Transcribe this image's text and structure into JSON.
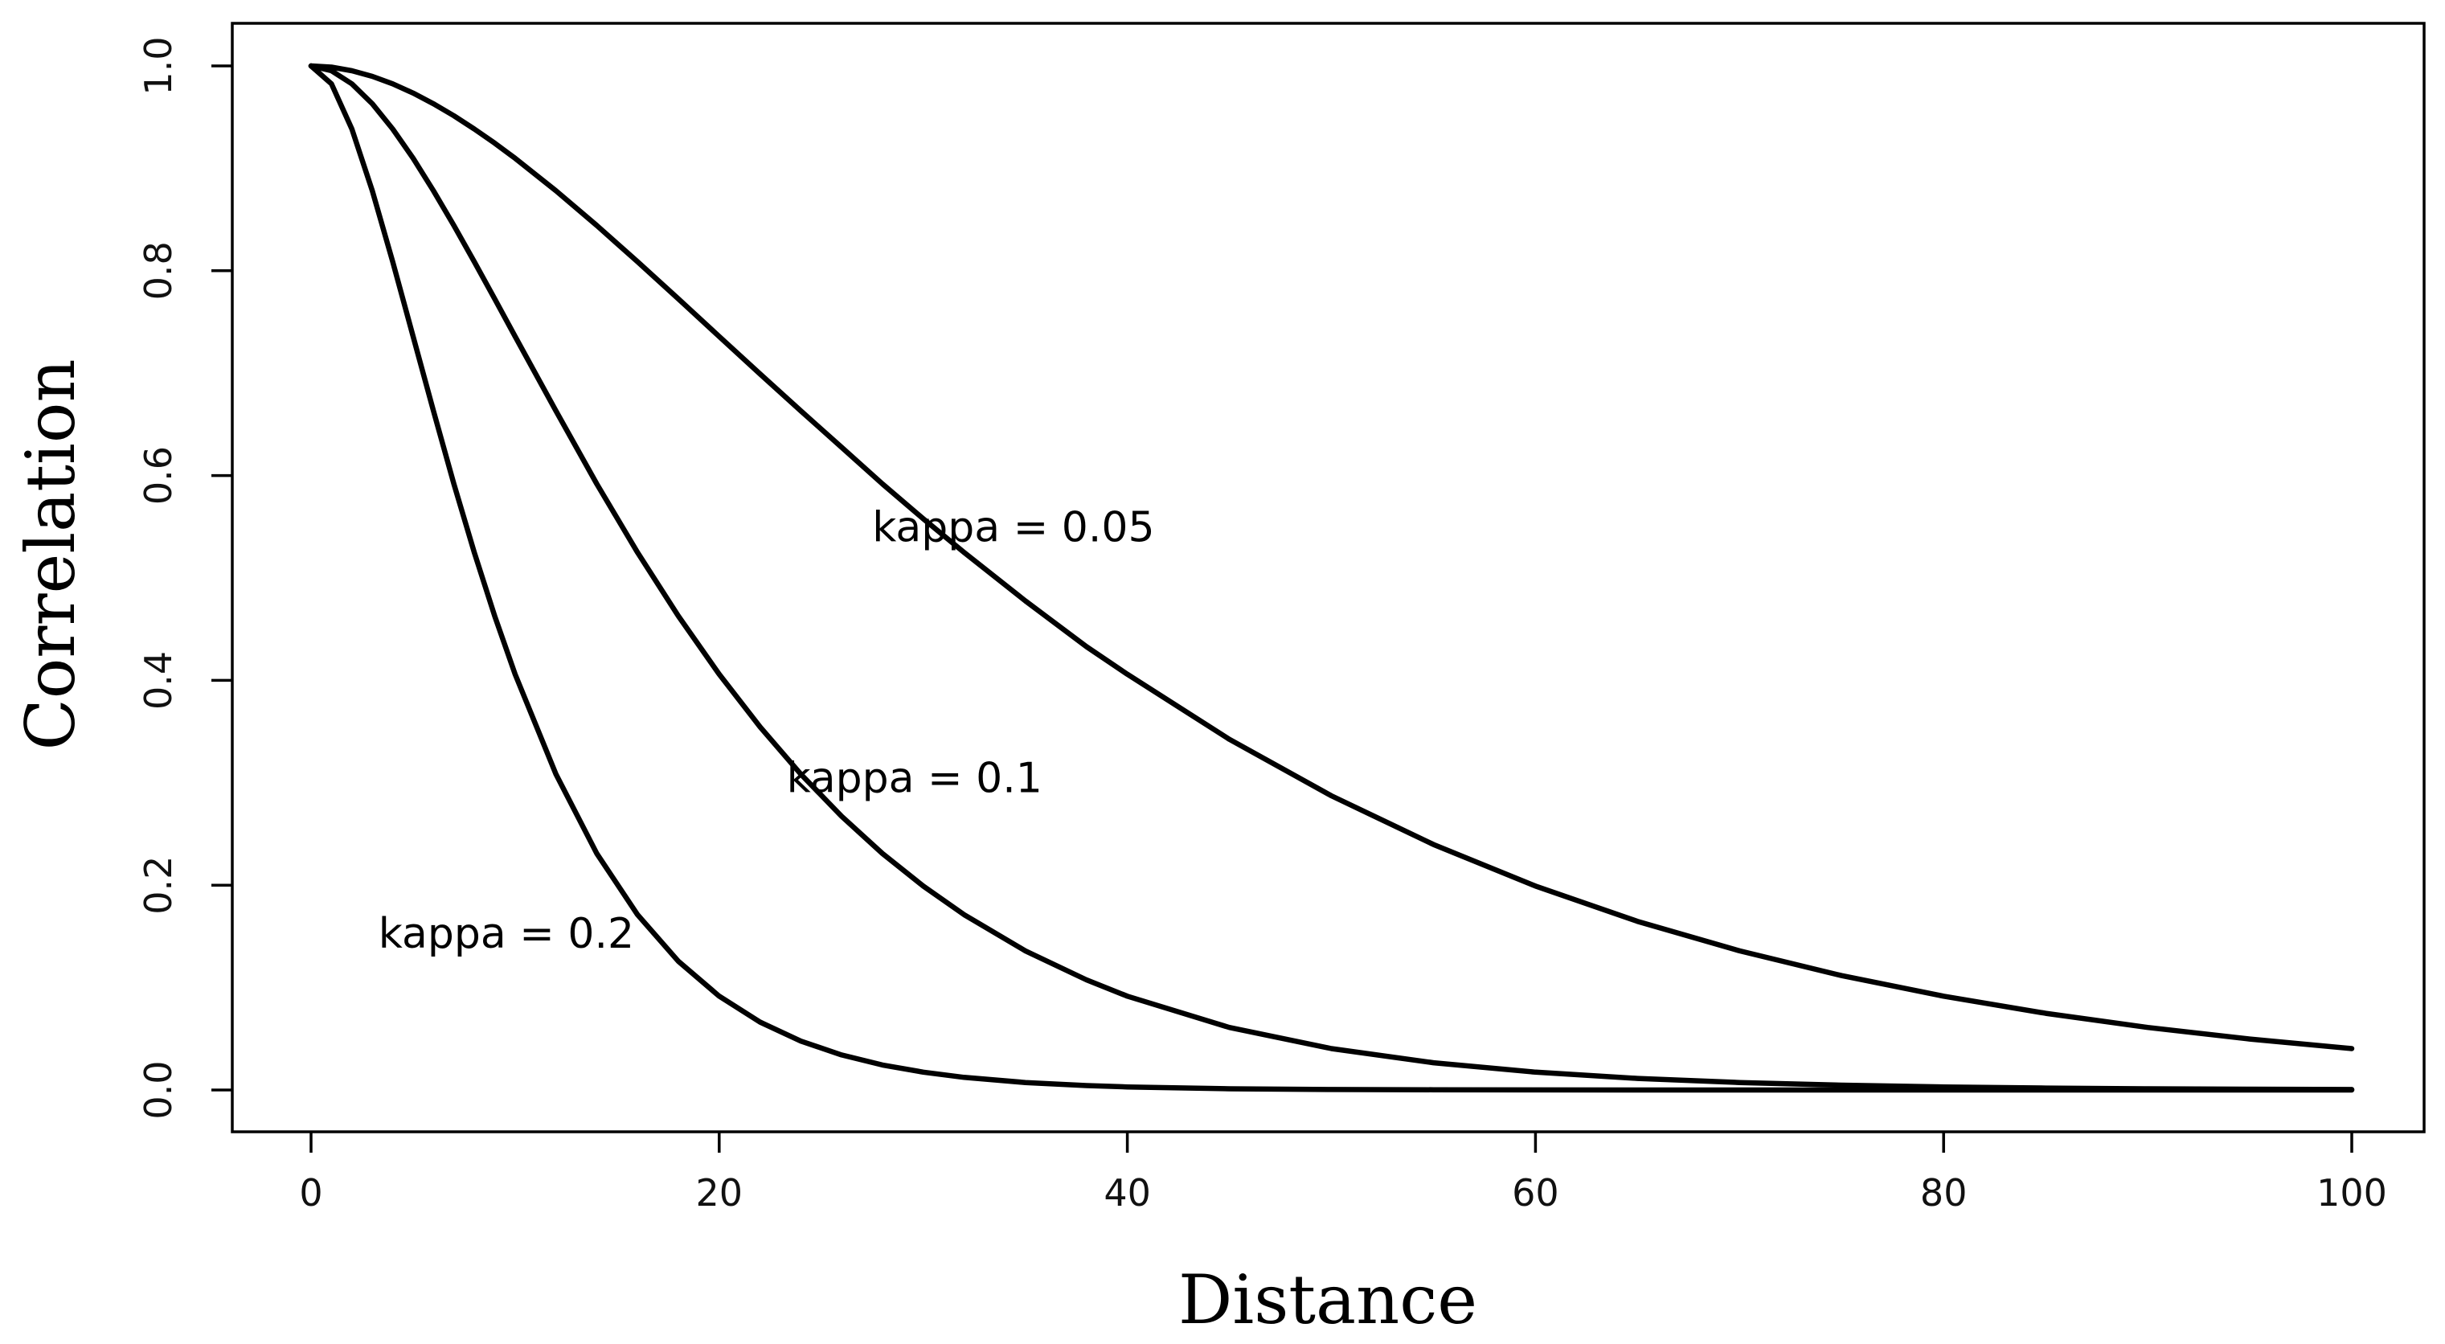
{
  "chart_data": {
    "type": "line",
    "title": "",
    "xlabel": "Distance",
    "ylabel": "Correlation",
    "xlim": [
      -10,
      104
    ],
    "ylim": [
      -0.04,
      1.04
    ],
    "xticks": [
      0,
      20,
      40,
      60,
      80,
      100
    ],
    "yticks": [
      0.0,
      0.2,
      0.4,
      0.6,
      0.8,
      1.0
    ],
    "xtick_labels": [
      "0",
      "20",
      "40",
      "60",
      "80",
      "100"
    ],
    "ytick_labels": [
      "0.0",
      "0.2",
      "0.4",
      "0.6",
      "0.8",
      "1.0"
    ],
    "grid": false,
    "line_color": "#000000",
    "x": [
      0,
      1,
      2,
      3,
      4,
      5,
      6,
      7,
      8,
      9,
      10,
      12,
      14,
      16,
      18,
      20,
      22,
      24,
      26,
      28,
      30,
      32,
      35,
      38,
      40,
      45,
      50,
      55,
      60,
      65,
      70,
      75,
      80,
      85,
      90,
      95,
      100
    ],
    "series": [
      {
        "values": [
          1.0,
          0.9988,
          0.9953,
          0.9898,
          0.9825,
          0.9735,
          0.963,
          0.9513,
          0.9384,
          0.9246,
          0.9098,
          0.8781,
          0.8442,
          0.8088,
          0.7725,
          0.7358,
          0.6992,
          0.6631,
          0.6276,
          0.5918,
          0.5578,
          0.5249,
          0.4776,
          0.4329,
          0.406,
          0.3425,
          0.2873,
          0.2397,
          0.1991,
          0.1647,
          0.1359,
          0.1117,
          0.0916,
          0.0749,
          0.0611,
          0.0498,
          0.0404
        ]
      },
      {
        "values": [
          1.0,
          0.9953,
          0.9825,
          0.963,
          0.9384,
          0.9098,
          0.8781,
          0.8442,
          0.8088,
          0.7725,
          0.7358,
          0.6631,
          0.5918,
          0.5249,
          0.4628,
          0.406,
          0.3546,
          0.3084,
          0.2673,
          0.2309,
          0.1991,
          0.1712,
          0.1359,
          0.1075,
          0.0916,
          0.0611,
          0.0404,
          0.0266,
          0.0174,
          0.0113,
          0.0073,
          0.0047,
          0.003,
          0.0019,
          0.0012,
          0.0008,
          0.0005
        ]
      },
      {
        "values": [
          1.0,
          0.9825,
          0.9384,
          0.8781,
          0.8088,
          0.7358,
          0.6631,
          0.5918,
          0.5249,
          0.4628,
          0.406,
          0.3084,
          0.2309,
          0.1712,
          0.1257,
          0.0916,
          0.0663,
          0.0477,
          0.0342,
          0.0244,
          0.0174,
          0.0123,
          0.0073,
          0.0043,
          0.003,
          0.0012,
          0.0005,
          0.0002,
          0.0001,
          0.0,
          0.0,
          0.0,
          0.0,
          0.0,
          0.0,
          0.0,
          0.0
        ]
      }
    ],
    "annotations": [
      {
        "text": "kappa = 0.05",
        "x": 27.5,
        "y": 0.55
      },
      {
        "text": "kappa = 0.1",
        "x": 23.3,
        "y": 0.305
      },
      {
        "text": "kappa = 0.2",
        "x": 3.3,
        "y": 0.153
      }
    ]
  }
}
